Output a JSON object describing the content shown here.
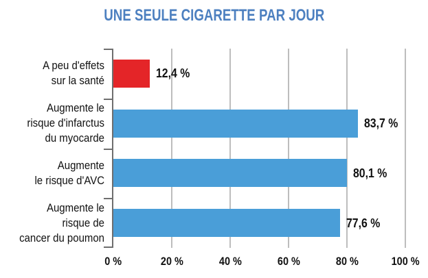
{
  "title": "UNE SEULE CIGARETTE PAR JOUR",
  "colors": {
    "title_blue": "#4d80c0",
    "bar_blue": "#4a9ed8",
    "bar_red": "#e42528",
    "gridline_gray": "#bdbdbd",
    "axis_gray": "#6e6e6e",
    "text_black": "#111111"
  },
  "chart_data": {
    "type": "bar",
    "orientation": "horizontal",
    "title": "UNE SEULE CIGARETTE PAR JOUR",
    "categories": [
      [
        "A peu d'effets",
        "sur la santé"
      ],
      [
        "Augmente le",
        "risque d'infarctus",
        "du myocarde"
      ],
      [
        "Augmente",
        "le risque d'AVC"
      ],
      [
        "Augmente le",
        "risque de",
        "cancer du poumon"
      ]
    ],
    "values": [
      12.4,
      83.7,
      80.1,
      77.6
    ],
    "value_labels": [
      "12,4 %",
      "83,7 %",
      "80,1 %",
      "77,6 %"
    ],
    "bar_colors": [
      "#e42528",
      "#4a9ed8",
      "#4a9ed8",
      "#4a9ed8"
    ],
    "xlabel": "",
    "ylabel": "",
    "xlim": [
      0,
      100
    ],
    "x_ticks": [
      0,
      20,
      40,
      60,
      80,
      100
    ],
    "x_tick_labels": [
      "0 %",
      "20 %",
      "40 %",
      "60 %",
      "80 %",
      "100 %"
    ],
    "grid": "vertical-only",
    "legend": "none"
  }
}
